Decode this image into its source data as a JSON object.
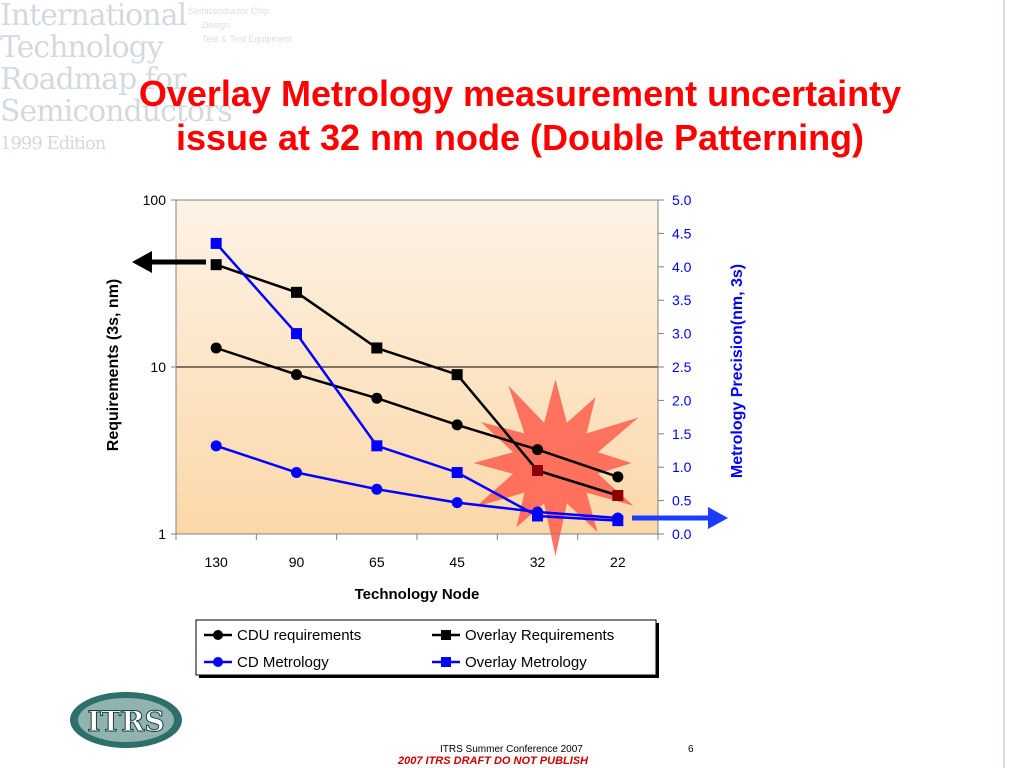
{
  "header": {
    "logo_lines": [
      "International",
      "Technology",
      "Roadmap for",
      "Semiconductors",
      "1999 Edition"
    ],
    "faint_menu": [
      "Semiconductor Chip",
      "Design",
      "Test & Test Equipment"
    ]
  },
  "slide": {
    "title_line1": "Overlay Metrology measurement uncertainty",
    "title_line2": "issue at 32 nm node (Double Patterning)"
  },
  "chart_data": {
    "type": "line",
    "categories": [
      "130",
      "90",
      "65",
      "45",
      "32",
      "22"
    ],
    "xlabel": "Technology Node",
    "ylabel": "Requirements (3s, nm)",
    "y2label": "Metrology Precision(nm, 3s)",
    "yscale": "log",
    "ylim": [
      1,
      100
    ],
    "yticks": [
      "1",
      "10",
      "100"
    ],
    "y2lim": [
      0,
      5
    ],
    "y2ticks": [
      "0.0",
      "0.5",
      "1.0",
      "1.5",
      "2.0",
      "2.5",
      "3.0",
      "3.5",
      "4.0",
      "4.5",
      "5.0"
    ],
    "grid": "horizontal major",
    "legend_position": "bottom",
    "series": [
      {
        "name": "CDU requirements",
        "axis": "left",
        "marker": "circle",
        "color": "#000000",
        "values": [
          13,
          9,
          6.5,
          4.5,
          3.2,
          2.2
        ]
      },
      {
        "name": "Overlay Requirements",
        "axis": "left",
        "marker": "square",
        "color": "#000000",
        "values": [
          41,
          28,
          13,
          9,
          2.4,
          1.7
        ]
      },
      {
        "name": "CD Metrology",
        "axis": "right",
        "marker": "circle",
        "color": "#0000ff",
        "values": [
          1.32,
          0.92,
          0.67,
          0.47,
          0.33,
          0.24
        ]
      },
      {
        "name": "Overlay Metrology",
        "axis": "right",
        "marker": "square",
        "color": "#0000ff",
        "values": [
          4.35,
          3.0,
          1.32,
          0.92,
          0.27,
          0.2
        ]
      }
    ],
    "highlight": "starburst at 32 nm node"
  },
  "colors": {
    "title": "#ff0000",
    "plot_bg_top": "#fdf3e6",
    "plot_bg_bottom": "#fbd7a8",
    "starburst": "#ff5e4d",
    "right_axis": "#0000ff",
    "arrow_left": "#000000",
    "arrow_right": "#1a3cff"
  },
  "footer": {
    "conference": "ITRS Summer Conference 2007",
    "page": "6",
    "draft": "2007 ITRS DRAFT DO NOT PUBLISH",
    "logo_text": "ITRS"
  }
}
